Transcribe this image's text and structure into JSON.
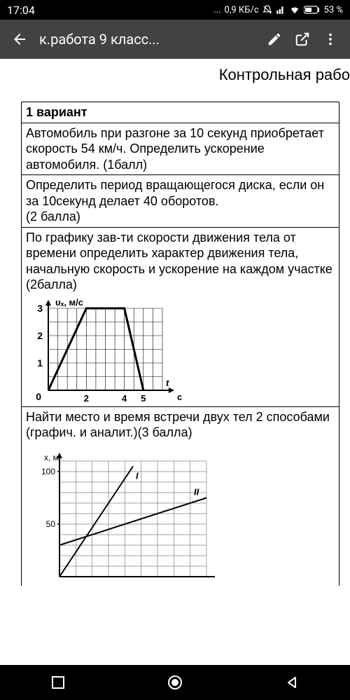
{
  "status": {
    "time": "17:04",
    "net_speed": "0,9 КБ/с",
    "battery": "53 %"
  },
  "appbar": {
    "title": "к.работа 9 класс..."
  },
  "doc": {
    "partial_header": "Контрольная рабо",
    "variant": "1 вариант",
    "q1": "Автомобиль при разгоне за 10 секунд приобретает скорость 54 км/ч. Определить ускорение автомобиля.  (1балл)",
    "q2": "Определить период вращающегося  диска, если он за  10секунд  делает 40 оборотов.\n(2 балла)",
    "q3": "По графику зав-ти скорости движения тела от времени определить  характер движения тела, начальную скорость и ускорение  на каждом участке (2балла)",
    "q4": "Найти место и время встречи двух тел 2 способами (графич. и аналит.)(3 балла)"
  },
  "chart1": {
    "type": "line",
    "ylabel": "υₓ, м/с",
    "xlabel": "t, с",
    "yticks": [
      0,
      1,
      2,
      3
    ],
    "xticks_labeled": [
      0,
      2,
      4,
      5
    ],
    "xlim": [
      0,
      6
    ],
    "ylim": [
      0,
      3
    ],
    "grid_step": 0.5,
    "line_color": "#000000",
    "grid_color": "#000000",
    "bg": "#ffffff",
    "line_width": 2,
    "points": [
      [
        0,
        0
      ],
      [
        2,
        3
      ],
      [
        4,
        3
      ],
      [
        5,
        0
      ]
    ]
  },
  "chart2": {
    "type": "line",
    "ylabel": "x, м",
    "yticks": [
      50,
      100
    ],
    "xlim": [
      0,
      9
    ],
    "ylim": [
      0,
      110
    ],
    "grid_step_x": 1,
    "grid_step_y": 10,
    "line_color": "#000000",
    "grid_color": "#808080",
    "bg": "#ffffff",
    "line_width": 2,
    "line_I_label": "I",
    "line_II_label": "II",
    "line_I": [
      [
        0,
        0
      ],
      [
        4.5,
        105
      ]
    ],
    "line_II": [
      [
        0,
        30
      ],
      [
        9,
        75
      ]
    ]
  }
}
